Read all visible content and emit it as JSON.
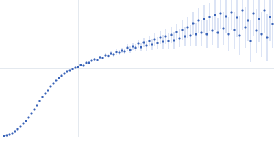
{
  "chart_data": {
    "type": "scatter",
    "xlim": [
      0,
      400
    ],
    "ylim": [
      0,
      200
    ],
    "vlines": [
      115
    ],
    "hlines": [
      100
    ],
    "color": "#3a64b8",
    "error_color": "#a9bde6",
    "guide_color": "#c9d3df",
    "x": [
      6,
      10,
      14,
      18,
      22,
      26,
      30,
      34,
      38,
      42,
      46,
      50,
      54,
      58,
      62,
      66,
      70,
      74,
      78,
      82,
      86,
      90,
      94,
      98,
      102,
      106,
      110,
      114,
      118,
      122,
      126,
      130,
      134,
      138,
      142,
      146,
      150,
      154,
      158,
      162,
      166,
      170,
      174,
      178,
      182,
      186,
      190,
      194,
      198,
      202,
      206,
      210,
      214,
      218,
      222,
      226,
      230,
      234,
      238,
      242,
      246,
      250,
      254,
      258,
      262,
      266,
      270,
      274,
      278,
      282,
      286,
      290,
      294,
      298,
      302,
      306,
      310,
      314,
      318,
      322,
      326,
      330,
      334,
      338,
      342,
      346,
      350,
      354,
      358,
      362,
      366,
      370,
      374,
      378,
      382,
      386,
      390,
      394,
      398
    ],
    "values": [
      1,
      2,
      3,
      5,
      8,
      11,
      15,
      19,
      23,
      28,
      34,
      40,
      46,
      52,
      58,
      63,
      68,
      73,
      78,
      82,
      86,
      89,
      92,
      95,
      97,
      99,
      101,
      102,
      105,
      104,
      108,
      108,
      111,
      113,
      112,
      116,
      115,
      119,
      118,
      122,
      120,
      124,
      123,
      126,
      125,
      130,
      127,
      132,
      130,
      136,
      131,
      138,
      133,
      140,
      135,
      142,
      137,
      145,
      139,
      147,
      140,
      149,
      141,
      153,
      144,
      156,
      147,
      160,
      148,
      166,
      150,
      170,
      152,
      172,
      150,
      175,
      155,
      178,
      152,
      180,
      158,
      176,
      150,
      182,
      156,
      174,
      148,
      185,
      160,
      170,
      140,
      180,
      155,
      172,
      150,
      185,
      145,
      175,
      165
    ],
    "errors": [
      0.5,
      0.5,
      0.5,
      0.5,
      0.5,
      0.5,
      0.5,
      0.5,
      0.5,
      0.5,
      0.5,
      0.5,
      0.5,
      0.5,
      0.5,
      0.5,
      0.5,
      0.5,
      0.5,
      0.5,
      0.5,
      0.5,
      0.5,
      0.5,
      1,
      1,
      1,
      1,
      1,
      1,
      1.5,
      1.5,
      1.5,
      2,
      2,
      2,
      2,
      3,
      3,
      3,
      3,
      4,
      4,
      4,
      4,
      5,
      5,
      5,
      5,
      6,
      6,
      7,
      7,
      8,
      8,
      9,
      9,
      10,
      10,
      11,
      11,
      12,
      12,
      12,
      13,
      14,
      14,
      15,
      16,
      17,
      17,
      18,
      19,
      20,
      20,
      21,
      21,
      22,
      22,
      23,
      24,
      25,
      25,
      26,
      27,
      28,
      28,
      29,
      30,
      30,
      31,
      32,
      32,
      33,
      33,
      34,
      34,
      35,
      35
    ]
  }
}
